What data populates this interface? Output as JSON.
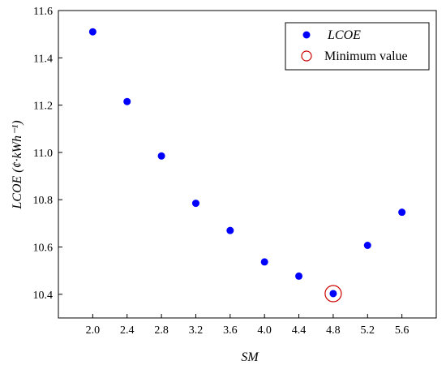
{
  "chart_data": {
    "type": "scatter",
    "xlabel": "SM",
    "ylabel": "LCOE (¢·kWh⁻¹)",
    "xlim": [
      1.6,
      6.0
    ],
    "ylim": [
      10.3,
      11.6
    ],
    "xticks": [
      2.0,
      2.4,
      2.8,
      3.2,
      3.6,
      4.0,
      4.4,
      4.8,
      5.2,
      5.6
    ],
    "yticks": [
      10.4,
      10.6,
      10.8,
      11.0,
      11.2,
      11.4,
      11.6
    ],
    "series": [
      {
        "name": "LCOE",
        "color": "#0000ff",
        "marker": "filled-circle",
        "x": [
          2.0,
          2.4,
          2.8,
          3.2,
          3.6,
          4.0,
          4.4,
          4.8,
          5.2,
          5.6
        ],
        "y": [
          11.51,
          11.215,
          10.985,
          10.785,
          10.67,
          10.537,
          10.477,
          10.403,
          10.607,
          10.747
        ]
      },
      {
        "name": "Minimum value",
        "color": "#cc0000",
        "marker": "open-circle",
        "x": [
          4.8
        ],
        "y": [
          10.403
        ]
      }
    ],
    "legend": {
      "position": "top-right",
      "entries": [
        "LCOE",
        "Minimum value"
      ]
    },
    "grid": false
  }
}
